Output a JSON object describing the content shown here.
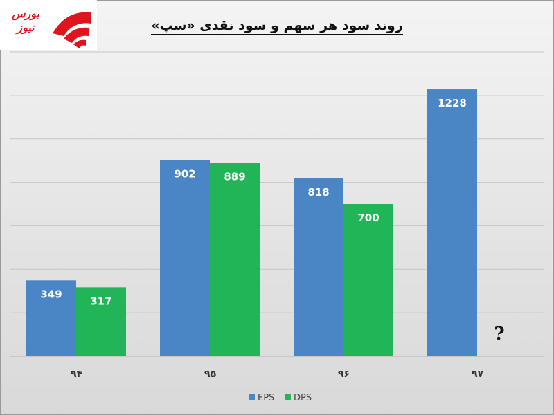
{
  "logo": {
    "text": "بورس نیوز",
    "colors": {
      "red": "#e0141c"
    }
  },
  "chart_data": {
    "type": "bar",
    "title": "روند سود هر سهم و سود نقدی «سپ»",
    "categories": [
      "۹۴",
      "۹۵",
      "۹۶",
      "۹۷"
    ],
    "series": [
      {
        "name": "EPS",
        "color": "#4a86c5",
        "values": [
          349,
          902,
          818,
          1228
        ]
      },
      {
        "name": "DPS",
        "color": "#21b557",
        "values": [
          317,
          889,
          700,
          null
        ]
      }
    ],
    "data_labels": [
      [
        "349",
        "902",
        "818",
        "1228"
      ],
      [
        "317",
        "889",
        "700",
        "?"
      ]
    ],
    "ylim": [
      0,
      1400
    ],
    "grid": true,
    "legend": "bottom-center",
    "xlabel": "",
    "ylabel": ""
  }
}
